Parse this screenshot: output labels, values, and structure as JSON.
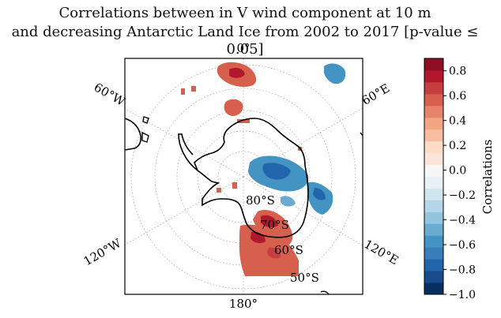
{
  "title": {
    "line1": "Correlations between in V wind component at 10 m",
    "line2": "and decreasing Antarctic Land Ice from 2002 to 2017 [p-value ≤ 0.05]"
  },
  "map": {
    "projection": "south-polar-stereographic",
    "longitude_labels": {
      "top": "0°",
      "bottom": "180°",
      "upper_left": "60°W",
      "upper_right": "60°E",
      "lower_left": "120°W",
      "lower_right": "120°E"
    },
    "latitude_labels": [
      "80°S",
      "70°S",
      "60°S",
      "50°S"
    ],
    "grid": true,
    "colors": {
      "positive": "#d6604d",
      "strong_positive": "#b2182b",
      "negative": "#4393c3",
      "strong_negative": "#2166ac",
      "coastline": "#000000"
    }
  },
  "colorbar": {
    "label": "Correlations",
    "range": [
      -1.0,
      0.9
    ],
    "tick_labels": [
      "0.8",
      "0.6",
      "0.4",
      "0.2",
      "0.0",
      "−0.2",
      "−0.4",
      "−0.6",
      "−0.8",
      "−1.0"
    ],
    "tick_values": [
      0.8,
      0.6,
      0.4,
      0.2,
      0.0,
      -0.2,
      -0.4,
      -0.6,
      -0.8,
      -1.0
    ],
    "colors": [
      "#053061",
      "#164c8b",
      "#2166ac",
      "#3a7dbb",
      "#4393c3",
      "#6aabd2",
      "#92c5de",
      "#b5d6e8",
      "#d1e5f0",
      "#e8f1f6",
      "#f7f7f7",
      "#fbe5d9",
      "#fddbc7",
      "#f8bca1",
      "#f4a582",
      "#e6836a",
      "#d6604d",
      "#c63e3f",
      "#b2182b",
      "#8e0f25"
    ]
  }
}
